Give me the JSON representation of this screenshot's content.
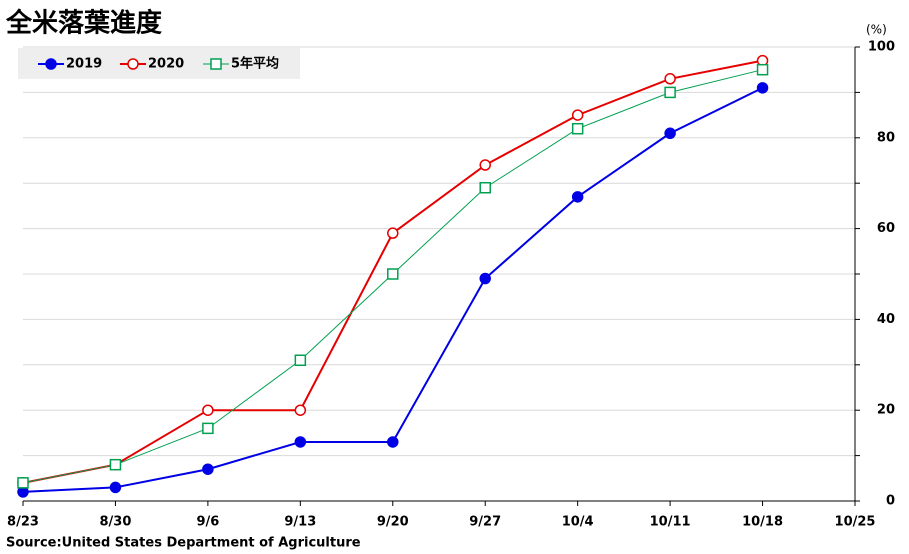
{
  "chart_data": {
    "type": "line",
    "title": "全米落葉進度",
    "y_unit": "(%)",
    "source": "Source:United States Department of Agriculture",
    "categories": [
      "8/23",
      "8/30",
      "9/6",
      "9/13",
      "9/20",
      "9/27",
      "10/4",
      "10/11",
      "10/18",
      "10/25"
    ],
    "series": [
      {
        "name": "2019",
        "color": "#0000e6",
        "marker": "circle",
        "filled": true,
        "width": 2,
        "values": [
          2,
          3,
          7,
          13,
          13,
          49,
          67,
          81,
          91,
          null
        ]
      },
      {
        "name": "2020",
        "color": "#e60000",
        "marker": "circle",
        "filled": false,
        "width": 2,
        "values": [
          4,
          8,
          20,
          20,
          59,
          74,
          85,
          93,
          97,
          null
        ]
      },
      {
        "name": "5年平均",
        "color": "#00a050",
        "marker": "square",
        "filled": false,
        "width": 1,
        "values": [
          4,
          8,
          16,
          31,
          50,
          69,
          82,
          90,
          95,
          null
        ]
      }
    ],
    "ylim": [
      0,
      100
    ],
    "yticks": [
      0,
      20,
      40,
      60,
      80,
      100
    ],
    "minor_yticks": [
      10,
      30,
      50,
      70,
      90
    ],
    "grid": true,
    "y_axis_side": "right",
    "legend": "top-left"
  }
}
